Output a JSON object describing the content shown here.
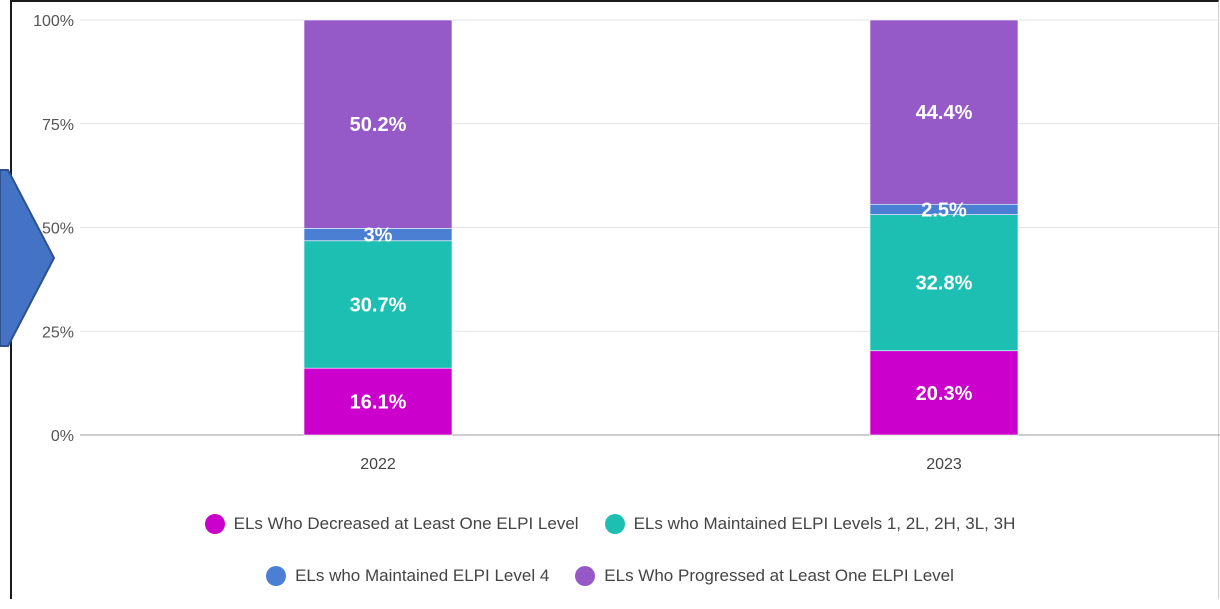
{
  "chart_data": {
    "type": "bar",
    "stacked": true,
    "categories": [
      "2022",
      "2023"
    ],
    "ylim": [
      0,
      100
    ],
    "yticks": [
      "0%",
      "25%",
      "50%",
      "75%",
      "100%"
    ],
    "grid": true,
    "legend_position": "bottom",
    "series": [
      {
        "name": "ELs Who Decreased at Least One ELPI Level",
        "values": [
          16.1,
          20.3
        ],
        "labels": [
          "16.1%",
          "20.3%"
        ],
        "color": "#cc00cc"
      },
      {
        "name": "ELs who Maintained ELPI Levels 1, 2L, 2H, 3L, 3H",
        "values": [
          30.7,
          32.8
        ],
        "labels": [
          "30.7%",
          "32.8%"
        ],
        "color": "#1dbfb3"
      },
      {
        "name": "ELs who Maintained ELPI Level 4",
        "values": [
          3.0,
          2.5
        ],
        "labels": [
          "3%",
          "2.5%"
        ],
        "color": "#4a7fd4"
      },
      {
        "name": "ELs Who Progressed at Least One ELPI Level",
        "values": [
          50.2,
          44.4
        ],
        "labels": [
          "50.2%",
          "44.4%"
        ],
        "color": "#955ac8"
      }
    ]
  },
  "decoration": {
    "arrow_color": "#4472c4",
    "arrow_border": "#2f528f"
  }
}
